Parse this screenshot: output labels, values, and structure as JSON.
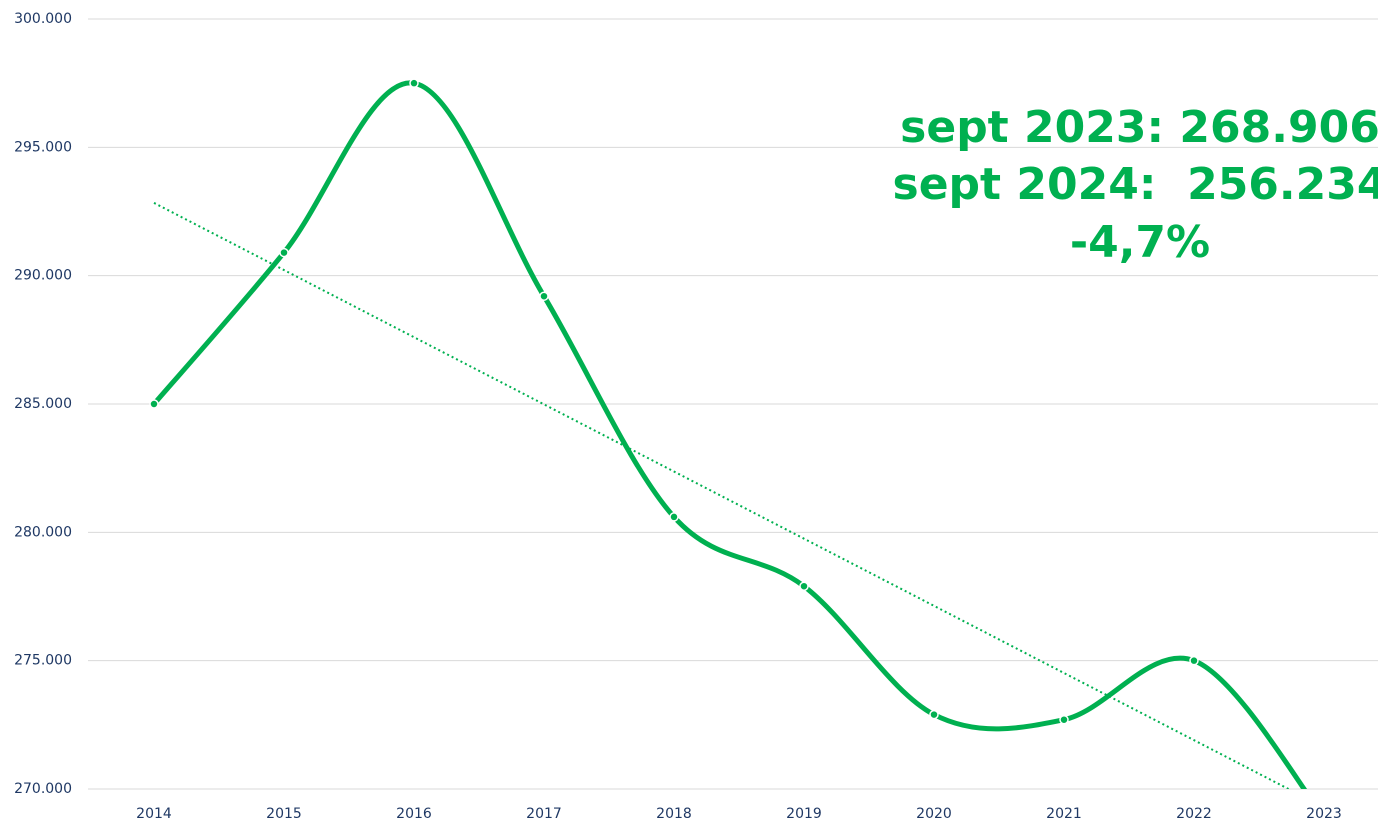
{
  "chart_data": {
    "type": "line",
    "categories": [
      "2014",
      "2015",
      "2016",
      "2017",
      "2018",
      "2019",
      "2020",
      "2021",
      "2022",
      "2023"
    ],
    "series": [
      {
        "name": "",
        "color": "#00b050",
        "values": [
          285000,
          290900,
          297500,
          289200,
          280600,
          277900,
          272900,
          272700,
          275000,
          268906
        ]
      }
    ],
    "ylim": [
      270000,
      300000
    ],
    "yticks": [
      {
        "value": 270000,
        "label": "270.000"
      },
      {
        "value": 275000,
        "label": "275.000"
      },
      {
        "value": 280000,
        "label": "280.000"
      },
      {
        "value": 285000,
        "label": "285.000"
      },
      {
        "value": 290000,
        "label": "290.000"
      },
      {
        "value": 295000,
        "label": "295.000"
      },
      {
        "value": 300000,
        "label": "300.000"
      }
    ],
    "grid": true,
    "trendline": true,
    "annotations": [
      "sept 2023: 268.906",
      "sept 2024:  256.234",
      "-4,7%"
    ]
  }
}
